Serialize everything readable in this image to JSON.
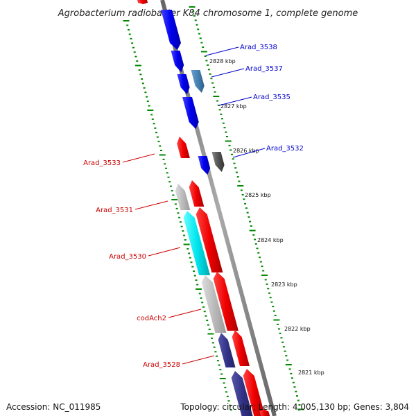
{
  "title": "Agrobacterium radiobacter K84 chromosome 1, complete genome",
  "footer": {
    "accession": "Accession: NC_011985",
    "topology": "Topology: circular; Length: 4,005,130 bp; Genes: 3,804"
  },
  "colors": {
    "forward_gene": "#0000ee",
    "reverse_gene": "#ee0000",
    "label_blue": "#0000cc",
    "label_red": "#cc0000",
    "backbone": "#999999",
    "tick": "#008800",
    "cyan_feature": "#00e5ee",
    "gray_feature": "#bbbbbb",
    "navy_feature": "#333388",
    "steel_feature": "#4682b4",
    "dark_gray_feature": "#555555"
  },
  "scale_labels": [
    "2828 kbp",
    "2827 kbp",
    "2826 kbp",
    "2825 kbp",
    "2824 kbp",
    "2823 kbp",
    "2822 kbp",
    "2821 kbp"
  ],
  "gene_labels_right": [
    "Arad_3538",
    "Arad_3537",
    "Arad_3535",
    "Arad_3532"
  ],
  "gene_labels_left": [
    "Arad_3533",
    "Arad_3531",
    "Arad_3530",
    "codAch2",
    "Arad_3528"
  ]
}
